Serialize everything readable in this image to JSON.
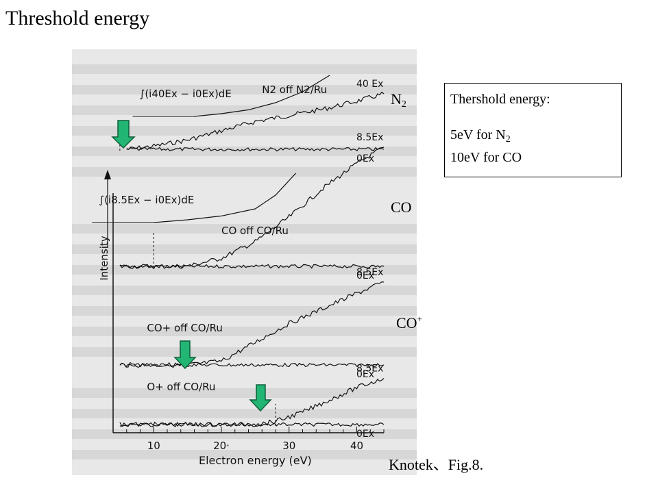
{
  "slide": {
    "title": "Threshold energy",
    "caption": "Knotek、Fig.8."
  },
  "labels": {
    "n2": {
      "base": "N",
      "sub": "2"
    },
    "co": "CO",
    "co_plus": {
      "base": "CO",
      "sup": "+"
    }
  },
  "info_box": {
    "heading": "Thershold energy:",
    "line1": {
      "pre": "5eV for N",
      "sub": "2"
    },
    "line2": "10eV for CO"
  },
  "colors": {
    "arrow_fill": "#22b573",
    "arrow_stroke": "#0d5e3a",
    "trace": "#111111",
    "scan_bg": "#e8e8e8"
  },
  "chart_data": {
    "type": "line",
    "xlabel": "Electron energy (eV)",
    "ylabel": "Intensity",
    "xlim": [
      4,
      44
    ],
    "x_ticks": [
      10,
      20,
      30,
      40
    ],
    "x_tick_labels": [
      "10",
      "20·",
      "30",
      "40"
    ],
    "grid": false,
    "panels": [
      {
        "title": "N2 off N2/Ru",
        "integral_label": "∫(i40Ex − i0Ex)dE",
        "series": [
          {
            "name": "40 Ex",
            "x": [
              6,
              10,
              15,
              20,
              25,
              30,
              35,
              40,
              44
            ],
            "y": [
              0.0,
              0.05,
              0.15,
              0.3,
              0.45,
              0.55,
              0.65,
              0.78,
              0.9
            ]
          },
          {
            "name": "0Ex",
            "x": [
              6,
              44
            ],
            "y": [
              0.0,
              0.0
            ]
          }
        ],
        "integral_curve": {
          "x": [
            16,
            20,
            24,
            28,
            32,
            36
          ],
          "y": [
            0.0,
            0.05,
            0.12,
            0.25,
            0.45,
            0.75
          ]
        },
        "threshold_ev": 5
      },
      {
        "title": "CO off CO/Ru",
        "integral_label": "∫(i8.5Ex − i0Ex)dE",
        "series": [
          {
            "name": "8.5Ex",
            "x": [
              5,
              10,
              15,
              20,
              25,
              30,
              35,
              40,
              44
            ],
            "y": [
              0.0,
              0.0,
              0.0,
              0.1,
              0.3,
              0.6,
              0.95,
              1.25,
              1.45
            ]
          },
          {
            "name": "0Ex",
            "x": [
              5,
              44
            ],
            "y": [
              0.0,
              0.0
            ]
          }
        ],
        "integral_curve": {
          "x": [
            10,
            15,
            20,
            25,
            28,
            31
          ],
          "y": [
            0.0,
            0.05,
            0.12,
            0.25,
            0.5,
            0.9
          ]
        },
        "threshold_ev": 10
      },
      {
        "title": "CO+ off CO/Ru",
        "series": [
          {
            "name": "8.5Ex",
            "x": [
              5,
              15,
              20,
              25,
              30,
              35,
              40,
              44
            ],
            "y": [
              0.0,
              0.0,
              0.05,
              0.3,
              0.55,
              0.75,
              0.95,
              1.1
            ]
          },
          {
            "name": "0Ex",
            "x": [
              5,
              44
            ],
            "y": [
              0.0,
              0.0
            ]
          }
        ],
        "threshold_ev": 15
      },
      {
        "title": "O+ off CO/Ru",
        "series": [
          {
            "name": "8.5Ex",
            "x": [
              5,
              25,
              28,
              32,
              36,
              40,
              44
            ],
            "y": [
              0.0,
              0.0,
              0.05,
              0.2,
              0.4,
              0.6,
              0.75
            ]
          },
          {
            "name": "0Ex",
            "x": [
              5,
              44
            ],
            "y": [
              0.0,
              0.0
            ]
          }
        ],
        "threshold_ev": 28
      }
    ]
  }
}
